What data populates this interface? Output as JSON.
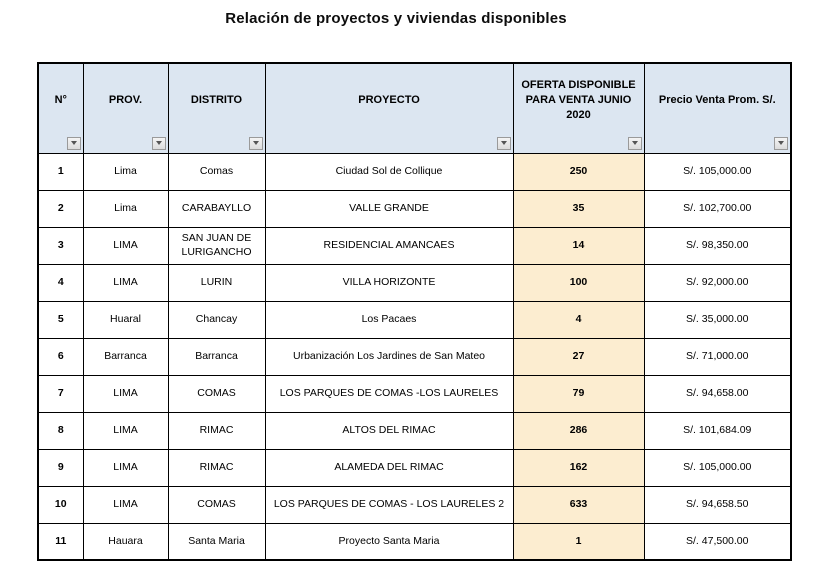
{
  "page": {
    "title": "Relación de proyectos y viviendas disponibles"
  },
  "colors": {
    "header_bg": "#DCE6F1",
    "offer_bg": "#FCEDD0"
  },
  "icons": {
    "filter_dropdown": "triangle-down"
  },
  "table": {
    "columns": [
      {
        "label": "N°"
      },
      {
        "label": "PROV."
      },
      {
        "label": "DISTRITO"
      },
      {
        "label": "PROYECTO"
      },
      {
        "label": "OFERTA DISPONIBLE PARA VENTA JUNIO 2020"
      },
      {
        "label": "Precio Venta Prom. S/."
      }
    ],
    "rows": [
      {
        "n": "1",
        "prov": "Lima",
        "distrito": "Comas",
        "proyecto": "Ciudad Sol de Collique",
        "oferta": "250",
        "precio": "S/. 105,000.00"
      },
      {
        "n": "2",
        "prov": "Lima",
        "distrito": "CARABAYLLO",
        "proyecto": "VALLE GRANDE",
        "oferta": "35",
        "precio": "S/. 102,700.00"
      },
      {
        "n": "3",
        "prov": "LIMA",
        "distrito": "SAN JUAN DE LURIGANCHO",
        "proyecto": "RESIDENCIAL AMANCAES",
        "oferta": "14",
        "precio": "S/. 98,350.00"
      },
      {
        "n": "4",
        "prov": "LIMA",
        "distrito": "LURIN",
        "proyecto": "VILLA HORIZONTE",
        "oferta": "100",
        "precio": "S/. 92,000.00"
      },
      {
        "n": "5",
        "prov": "Huaral",
        "distrito": "Chancay",
        "proyecto": "Los Pacaes",
        "oferta": "4",
        "precio": "S/. 35,000.00"
      },
      {
        "n": "6",
        "prov": "Barranca",
        "distrito": "Barranca",
        "proyecto": "Urbanización Los Jardines de San Mateo",
        "oferta": "27",
        "precio": "S/. 71,000.00"
      },
      {
        "n": "7",
        "prov": "LIMA",
        "distrito": "COMAS",
        "proyecto": "LOS PARQUES DE COMAS -LOS LAURELES",
        "oferta": "79",
        "precio": "S/. 94,658.00"
      },
      {
        "n": "8",
        "prov": "LIMA",
        "distrito": "RIMAC",
        "proyecto": "ALTOS DEL RIMAC",
        "oferta": "286",
        "precio": "S/. 101,684.09"
      },
      {
        "n": "9",
        "prov": "LIMA",
        "distrito": "RIMAC",
        "proyecto": "ALAMEDA DEL RIMAC",
        "oferta": "162",
        "precio": "S/. 105,000.00"
      },
      {
        "n": "10",
        "prov": "LIMA",
        "distrito": "COMAS",
        "proyecto": "LOS PARQUES DE COMAS  - LOS LAURELES 2",
        "oferta": "633",
        "precio": "S/. 94,658.50"
      },
      {
        "n": "11",
        "prov": "Hauara",
        "distrito": "Santa Maria",
        "proyecto": "Proyecto Santa Maria",
        "oferta": "1",
        "precio": "S/. 47,500.00"
      }
    ]
  }
}
